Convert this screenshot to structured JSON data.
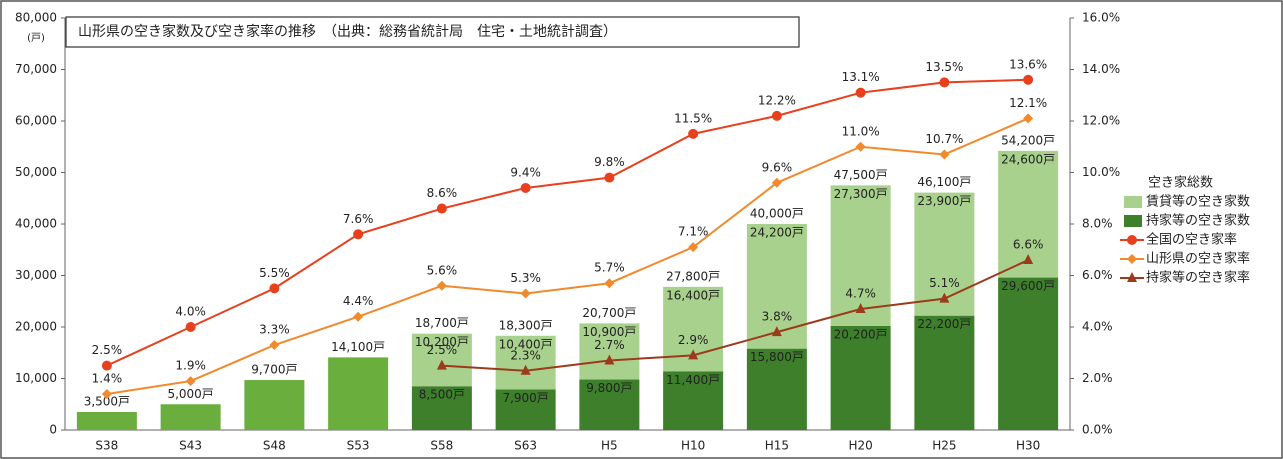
{
  "chart_data": {
    "type": "bar-line",
    "title": "山形県の空き家数及び空き家率の推移　（出典：総務省統計局　住宅・土地統計調査）",
    "y_unit": "(戸)",
    "categories": [
      "S38",
      "S43",
      "S48",
      "S53",
      "S58",
      "S63",
      "H5",
      "H10",
      "H15",
      "H20",
      "H25",
      "H30"
    ],
    "ylim": [
      0,
      80000
    ],
    "yticks": [
      0,
      {
        "value": 10000,
        "label": "10,000"
      },
      {
        "value": 20000,
        "label": "20,000"
      },
      {
        "value": 30000,
        "label": "30,000"
      },
      {
        "value": 40000,
        "label": "40,000"
      },
      {
        "value": 50000,
        "label": "50,000"
      },
      {
        "value": 60000,
        "label": "60,000"
      },
      {
        "value": 70000,
        "label": "70,000"
      },
      {
        "value": 80000,
        "label": "80,000"
      }
    ],
    "y2lim": [
      0,
      16
    ],
    "y2ticks": [
      {
        "value": 0,
        "label": "0.0%"
      },
      {
        "value": 2,
        "label": "2.0%"
      },
      {
        "value": 4,
        "label": "4.0%"
      },
      {
        "value": 6,
        "label": "6.0%"
      },
      {
        "value": 8,
        "label": "8.0%"
      },
      {
        "value": 10,
        "label": "10.0%"
      },
      {
        "value": 12,
        "label": "12.0%"
      },
      {
        "value": 14,
        "label": "14.0%"
      },
      {
        "value": 16,
        "label": "16.0%"
      }
    ],
    "series": [
      {
        "name": "空き家総数",
        "kind": "total",
        "color": "#6aaf3d",
        "values": [
          3500,
          5000,
          9700,
          14100,
          18700,
          18300,
          20700,
          27800,
          40000,
          47500,
          46100,
          54200
        ],
        "value_labels": [
          "3,500戸",
          "5,000戸",
          "9,700戸",
          "14,100戸",
          "18,700戸",
          "18,300戸",
          "20,700戸",
          "27,800戸",
          "40,000戸",
          "47,500戸",
          "46,100戸",
          "54,200戸"
        ]
      },
      {
        "name": "賃貸等の空き家数",
        "kind": "stack",
        "color": "#a9d18e",
        "values": [
          null,
          null,
          null,
          null,
          10200,
          10400,
          10900,
          16400,
          24200,
          27300,
          23900,
          24600
        ],
        "value_labels": [
          null,
          null,
          null,
          null,
          "10,200戸",
          "10,400戸",
          "10,900戸",
          "16,400戸",
          "24,200戸",
          "27,300戸",
          "23,900戸",
          "24,600戸"
        ]
      },
      {
        "name": "持家等の空き家数",
        "kind": "stack",
        "color": "#3d7f2b",
        "values": [
          null,
          null,
          null,
          null,
          8500,
          7900,
          9800,
          11400,
          15800,
          20200,
          22200,
          29600
        ],
        "value_labels": [
          null,
          null,
          null,
          null,
          "8,500戸",
          "7,900戸",
          "9,800戸",
          "11,400戸",
          "15,800戸",
          "20,200戸",
          "22,200戸",
          "29,600戸"
        ]
      },
      {
        "name": "全国の空き家率",
        "kind": "line",
        "axis": "y2",
        "marker": "circle",
        "color": "#e8401c",
        "values": [
          2.5,
          4.0,
          5.5,
          7.6,
          8.6,
          9.4,
          9.8,
          11.5,
          12.2,
          13.1,
          13.5,
          13.6
        ],
        "value_labels": [
          "2.5%",
          "4.0%",
          "5.5%",
          "7.6%",
          "8.6%",
          "9.4%",
          "9.8%",
          "11.5%",
          "12.2%",
          "13.1%",
          "13.5%",
          "13.6%"
        ]
      },
      {
        "name": "山形県の空き家率",
        "kind": "line",
        "axis": "y2",
        "marker": "diamond",
        "color": "#f08a2c",
        "values": [
          1.4,
          1.9,
          3.3,
          4.4,
          5.6,
          5.3,
          5.7,
          7.1,
          9.6,
          11.0,
          10.7,
          12.1
        ],
        "value_labels": [
          "1.4%",
          "1.9%",
          "3.3%",
          "4.4%",
          "5.6%",
          "5.3%",
          "5.7%",
          "7.1%",
          "9.6%",
          "11.0%",
          "10.7%",
          "12.1%"
        ]
      },
      {
        "name": "持家等の空き家率",
        "kind": "line",
        "axis": "y2",
        "marker": "triangle",
        "color": "#9c3b1b",
        "values": [
          null,
          null,
          null,
          null,
          2.5,
          2.3,
          2.7,
          2.9,
          3.8,
          4.7,
          5.1,
          6.6
        ],
        "value_labels": [
          null,
          null,
          null,
          null,
          "2.5%",
          "2.3%",
          "2.7%",
          "2.9%",
          "3.8%",
          "4.7%",
          "5.1%",
          "6.6%"
        ]
      }
    ]
  }
}
